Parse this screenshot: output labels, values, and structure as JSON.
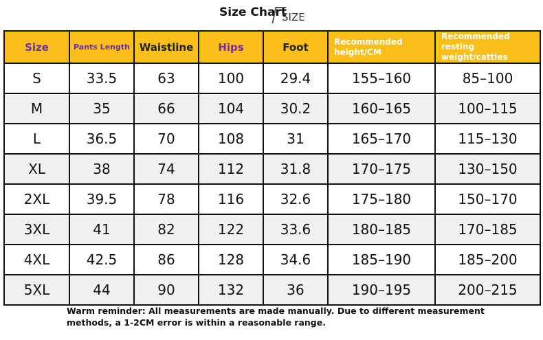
{
  "header": {
    "title": "Size Chart",
    "logo": "SIZE"
  },
  "table": {
    "columns": [
      "Size",
      "Pants Length",
      "Waistline",
      "Hips",
      "Foot",
      "Recommended height/CM",
      "Recommended resting weight/catties"
    ],
    "rows": [
      [
        "S",
        "33.5",
        "63",
        "100",
        "29.4",
        "155–160",
        "85–100"
      ],
      [
        "M",
        "35",
        "66",
        "104",
        "30.2",
        "160–165",
        "100–115"
      ],
      [
        "L",
        "36.5",
        "70",
        "108",
        "31",
        "165–170",
        "115–130"
      ],
      [
        "XL",
        "38",
        "74",
        "112",
        "31.8",
        "170–175",
        "130–150"
      ],
      [
        "2XL",
        "39.5",
        "78",
        "116",
        "32.6",
        "175–180",
        "150–170"
      ],
      [
        "3XL",
        "41",
        "82",
        "122",
        "33.6",
        "180–185",
        "170–185"
      ],
      [
        "4XL",
        "42.5",
        "86",
        "128",
        "34.6",
        "185–190",
        "185–200"
      ],
      [
        "5XL",
        "44",
        "90",
        "132",
        "36",
        "190–195",
        "200–215"
      ]
    ]
  },
  "footer": {
    "note": "Warm reminder: All measurements are made manually. Due to different measurement methods, a 1-2CM error is within a reasonable range."
  }
}
